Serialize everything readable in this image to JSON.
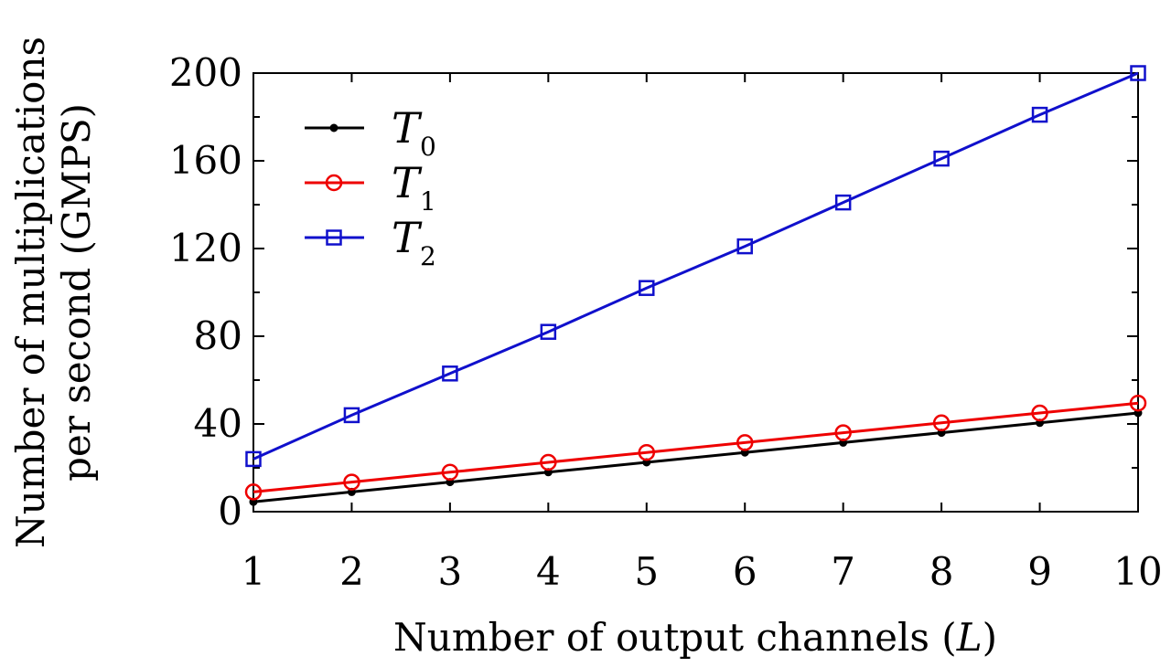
{
  "chart_data": {
    "type": "line",
    "xlabel": "Number of output channels (",
    "xlabel_var": "L",
    "xlabel_close": ")",
    "ylabel_line1": "Number of multiplications",
    "ylabel_line2": "per second (GMPS)",
    "x": [
      1,
      2,
      3,
      4,
      5,
      6,
      7,
      8,
      9,
      10
    ],
    "x_ticks": [
      "1",
      "2",
      "3",
      "4",
      "5",
      "6",
      "7",
      "8",
      "9",
      "10"
    ],
    "y_ticks": [
      "0",
      "40",
      "80",
      "120",
      "160",
      "200"
    ],
    "xlim": [
      1,
      10
    ],
    "ylim": [
      0,
      200
    ],
    "grid": false,
    "legend_position": "top-left",
    "series": [
      {
        "name": "T",
        "subscript": "0",
        "color": "#000000",
        "marker": "dot",
        "values": [
          4.5,
          9,
          13.5,
          18,
          22.5,
          27,
          31.5,
          36,
          40.5,
          45
        ]
      },
      {
        "name": "T",
        "subscript": "1",
        "color": "#ee0000",
        "marker": "circle",
        "values": [
          9,
          13.5,
          18,
          22.5,
          27,
          31.5,
          36,
          40.5,
          45,
          49.5
        ]
      },
      {
        "name": "T",
        "subscript": "2",
        "color": "#1010cc",
        "marker": "square",
        "values": [
          24,
          44,
          63,
          82,
          102,
          121,
          141,
          161,
          181,
          200
        ]
      }
    ]
  }
}
